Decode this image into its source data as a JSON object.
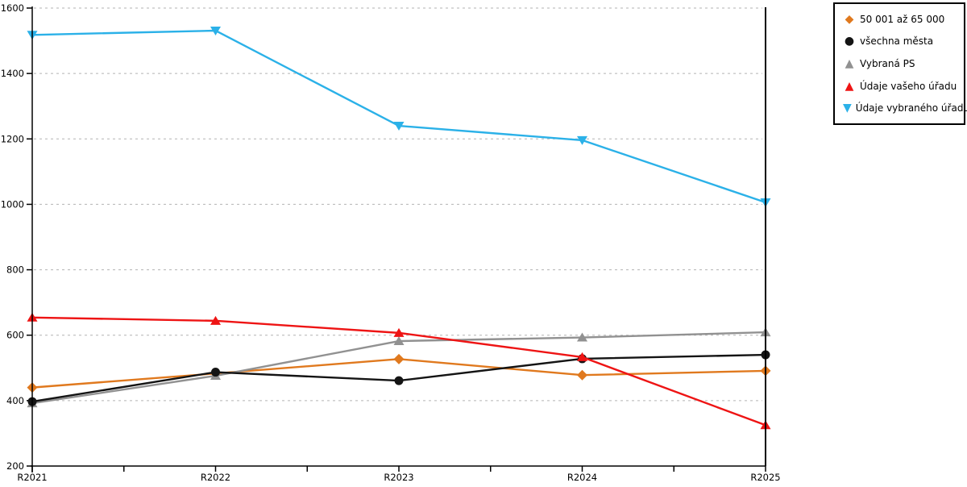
{
  "chart_data": {
    "type": "line",
    "title": "",
    "xlabel": "",
    "ylabel": "",
    "categories": [
      "R2021",
      "R2022",
      "R2023",
      "R2024",
      "R2025"
    ],
    "series": [
      {
        "name": "50 001 až 65 000",
        "marker": "diamond",
        "color": "#E0791E",
        "values": [
          440,
          483,
          527,
          478,
          491
        ]
      },
      {
        "name": "všechna města",
        "marker": "circle",
        "color": "#141414",
        "values": [
          397,
          487,
          461,
          528,
          540
        ]
      },
      {
        "name": "Vybraná PS",
        "marker": "triangle-up",
        "color": "#919191",
        "values": [
          392,
          476,
          582,
          593,
          609
        ]
      },
      {
        "name": "Údaje vašeho úřadu",
        "marker": "triangle-up",
        "color": "#EE1414",
        "values": [
          654,
          644,
          607,
          533,
          325
        ]
      },
      {
        "name": "Údaje vybraného úřadu",
        "marker": "triangle-down",
        "color": "#2BB1E8",
        "values": [
          1518,
          1531,
          1240,
          1196,
          1006
        ]
      }
    ],
    "ylim": [
      200,
      1600
    ],
    "yticks": [
      200,
      400,
      600,
      800,
      1000,
      1200,
      1400,
      1600
    ],
    "grid": {
      "show": true,
      "style": "dashed",
      "color": "#b3b3b3"
    },
    "axis_color": "#000000",
    "legend": {
      "position": "top-right",
      "border_color": "#000000",
      "background": "#ffffff"
    }
  }
}
